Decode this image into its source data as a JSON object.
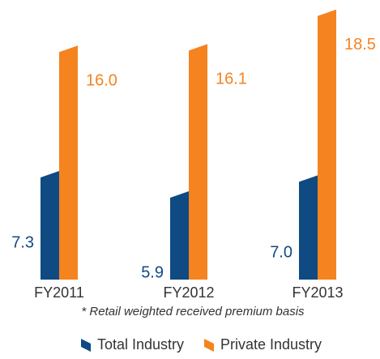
{
  "chart_data": {
    "type": "bar",
    "categories": [
      "FY2011",
      "FY2012",
      "FY2013"
    ],
    "series": [
      {
        "name": "Total Industry",
        "color": "#0f4a82",
        "values": [
          7.3,
          5.9,
          7.0
        ],
        "value_labels": [
          "7.3",
          "5.9",
          "7.0"
        ]
      },
      {
        "name": "Private Industry",
        "color": "#f5831f",
        "values": [
          16.0,
          16.1,
          18.5
        ],
        "value_labels": [
          "16.0",
          "16.1",
          "18.5"
        ]
      }
    ],
    "note": "* Retail weighted received premium basis",
    "legend": "bottom"
  }
}
